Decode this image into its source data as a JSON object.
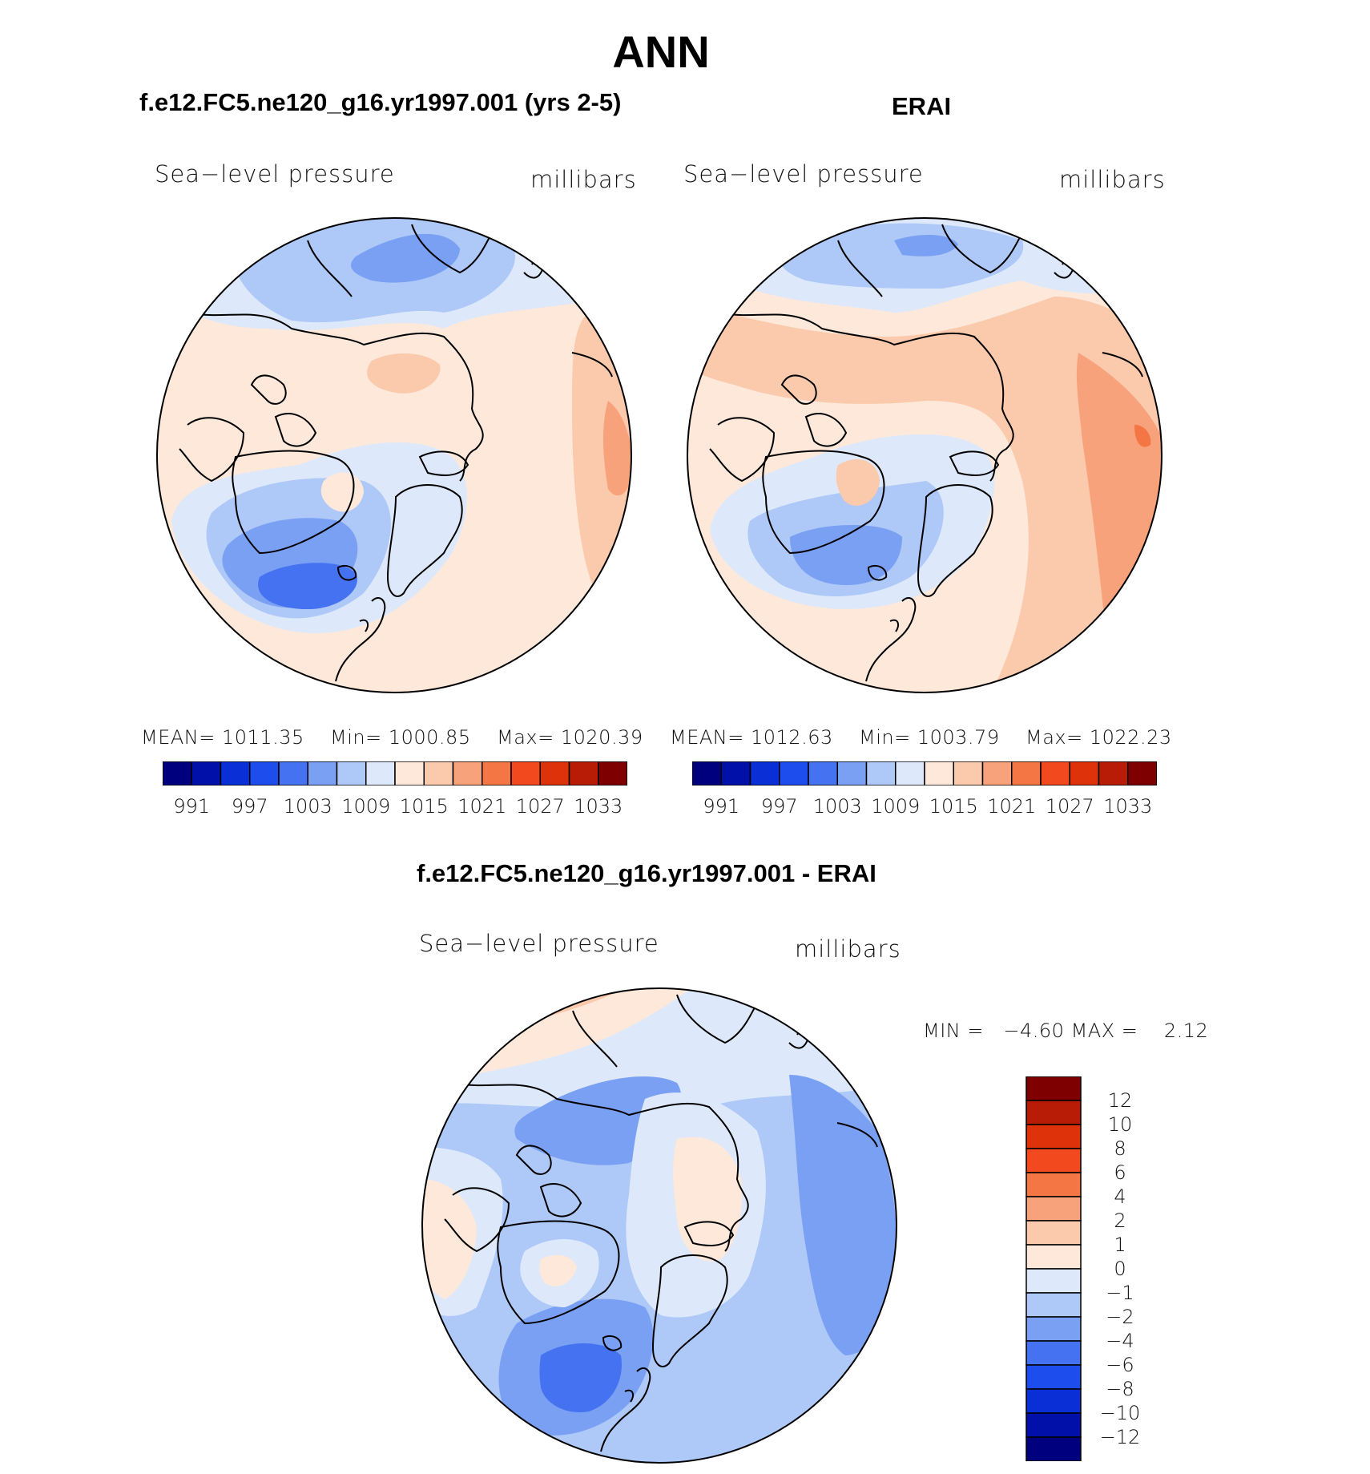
{
  "page": {
    "title": "ANN",
    "diff_title": "f.e12.FC5.ne120_g16.yr1997.001 - ERAI"
  },
  "panels": [
    {
      "id": "model",
      "title": "f.e12.FC5.ne120_g16.yr1997.001 (yrs 2-5)",
      "variable": "Sea−level pressure",
      "units": "millibars",
      "stats": {
        "mean_label": "MEAN=",
        "mean": "1011.35",
        "min_label": "Min=",
        "min": "1000.85",
        "max_label": "Max=",
        "max": "1020.39"
      },
      "tick_labels": [
        "991",
        "997",
        "1003",
        "1009",
        "1015",
        "1021",
        "1027",
        "1033"
      ]
    },
    {
      "id": "obs",
      "title": "ERAI",
      "variable": "Sea−level pressure",
      "units": "millibars",
      "stats": {
        "mean_label": "MEAN=",
        "mean": "1012.63",
        "min_label": "Min=",
        "min": "1003.79",
        "max_label": "Max=",
        "max": "1022.23"
      },
      "tick_labels": [
        "991",
        "997",
        "1003",
        "1009",
        "1015",
        "1021",
        "1027",
        "1033"
      ]
    },
    {
      "id": "diff",
      "variable": "Sea−level pressure",
      "units": "millibars",
      "stats": {
        "min_label": "MIN =",
        "min": "−4.60",
        "max_label": "MAX =",
        "max": "2.12"
      },
      "tick_labels": [
        "12",
        "10",
        "8",
        "6",
        "4",
        "2",
        "1",
        "0",
        "−1",
        "−2",
        "−4",
        "−6",
        "−8",
        "−10",
        "−12"
      ]
    }
  ],
  "colors": {
    "abs_scale": [
      "#00007f",
      "#0010a8",
      "#0a2fd6",
      "#1e4dee",
      "#4472f0",
      "#7aa0f3",
      "#aec8f8",
      "#dde9fb",
      "#fde8da",
      "#fbc9ac",
      "#f8a27b",
      "#f47645",
      "#f3491f",
      "#de320a",
      "#b81b06",
      "#7f0000"
    ],
    "diff_scale": [
      "#7f0000",
      "#b81b06",
      "#de320a",
      "#f3491f",
      "#f47645",
      "#f8a27b",
      "#fbc9ac",
      "#fde8da",
      "#dde9fb",
      "#aec8f8",
      "#7aa0f3",
      "#4472f0",
      "#1e4dee",
      "#0a2fd6",
      "#0010a8",
      "#00007f"
    ],
    "coastline": "#000000"
  }
}
